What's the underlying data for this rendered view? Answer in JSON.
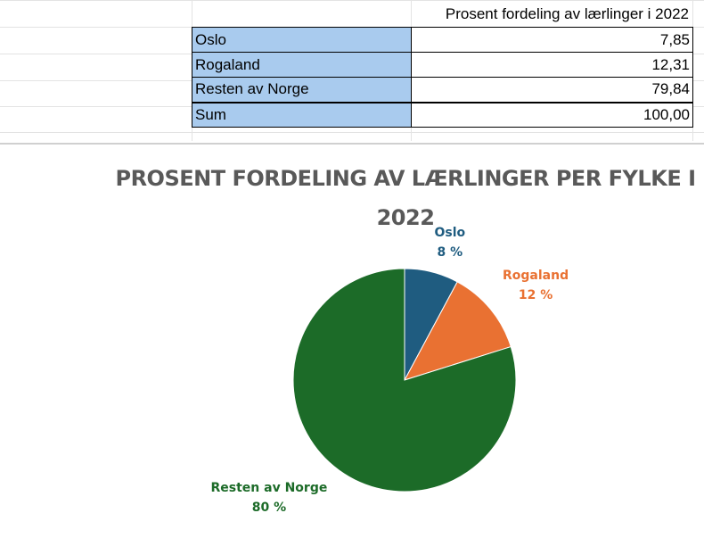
{
  "sheet": {
    "header": "Prosent fordeling av lærlinger i 2022",
    "rows": [
      {
        "label": "Oslo",
        "value": "7,85"
      },
      {
        "label": "Rogaland",
        "value": "12,31"
      },
      {
        "label": "Resten av Norge",
        "value": "79,84"
      },
      {
        "label": "Sum",
        "value": "100,00"
      }
    ],
    "label_fill": "#a9cbee"
  },
  "chart_data": {
    "type": "pie",
    "title": "PROSENT FORDELING AV LÆRLINGER PER FYLKE I 2022",
    "categories": [
      "Oslo",
      "Rogaland",
      "Resten av Norge"
    ],
    "values": [
      7.85,
      12.31,
      79.84
    ],
    "data_labels": [
      "8 %",
      "12 %",
      "80 %"
    ],
    "colors": [
      "#1f5c80",
      "#e97132",
      "#1c6b28"
    ],
    "legend": "none"
  }
}
